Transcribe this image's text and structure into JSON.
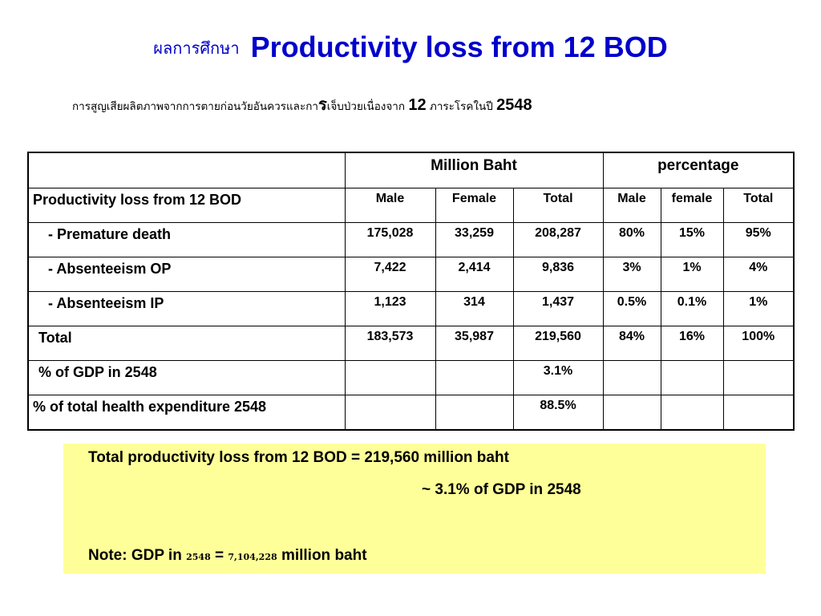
{
  "title": {
    "thai": "ผลการศึกษา",
    "english": "Productivity loss from 12 BOD"
  },
  "subtitle": {
    "part1": "การสูญเสียผลิตภาพจากการตายก่อนวัยอันควรและกา",
    "part_ra": "ร",
    "part2": "เจ็บป่วยเนื่องจาก",
    "num1": "12",
    "part3": "ภาระโรคในปี",
    "num2": "2548"
  },
  "table": {
    "group_headers": [
      "Million Baht",
      "percentage"
    ],
    "sub_headers_label": "Productivity loss from 12 BOD",
    "sub_headers": [
      "Male",
      "Female",
      "Total",
      "Male",
      "female",
      "Total"
    ],
    "rows": [
      {
        "label": "-  Premature death",
        "cells": [
          "175,028",
          "33,259",
          "208,287",
          "80%",
          "15%",
          "95%"
        ]
      },
      {
        "label": "-  Absenteeism OP",
        "cells": [
          "7,422",
          "2,414",
          "9,836",
          "3%",
          "1%",
          "4%"
        ]
      },
      {
        "label": "-  Absenteeism IP",
        "cells": [
          "1,123",
          "314",
          "1,437",
          "0.5%",
          "0.1%",
          "1%"
        ]
      },
      {
        "label": "Total",
        "cells": [
          "183,573",
          "35,987",
          "219,560",
          "84%",
          "16%",
          "100%"
        ]
      },
      {
        "label": "% of GDP in 2548",
        "cells": [
          "",
          "",
          "3.1%",
          "",
          "",
          ""
        ]
      },
      {
        "label": "% of total health expenditure 2548",
        "cells": [
          "",
          "",
          "88.5%",
          "",
          "",
          ""
        ]
      }
    ]
  },
  "summary": {
    "line1": "Total productivity loss from 12 BOD = 219,560 million baht",
    "line2": "~ 3.1% of GDP in 2548",
    "note_prefix": "Note: GDP in",
    "note_year": "2548",
    "note_equals": "=",
    "note_value": "7,104,228",
    "note_suffix": "million baht"
  },
  "colors": {
    "title": "#0000cc",
    "summary_background": "#ffff99"
  }
}
